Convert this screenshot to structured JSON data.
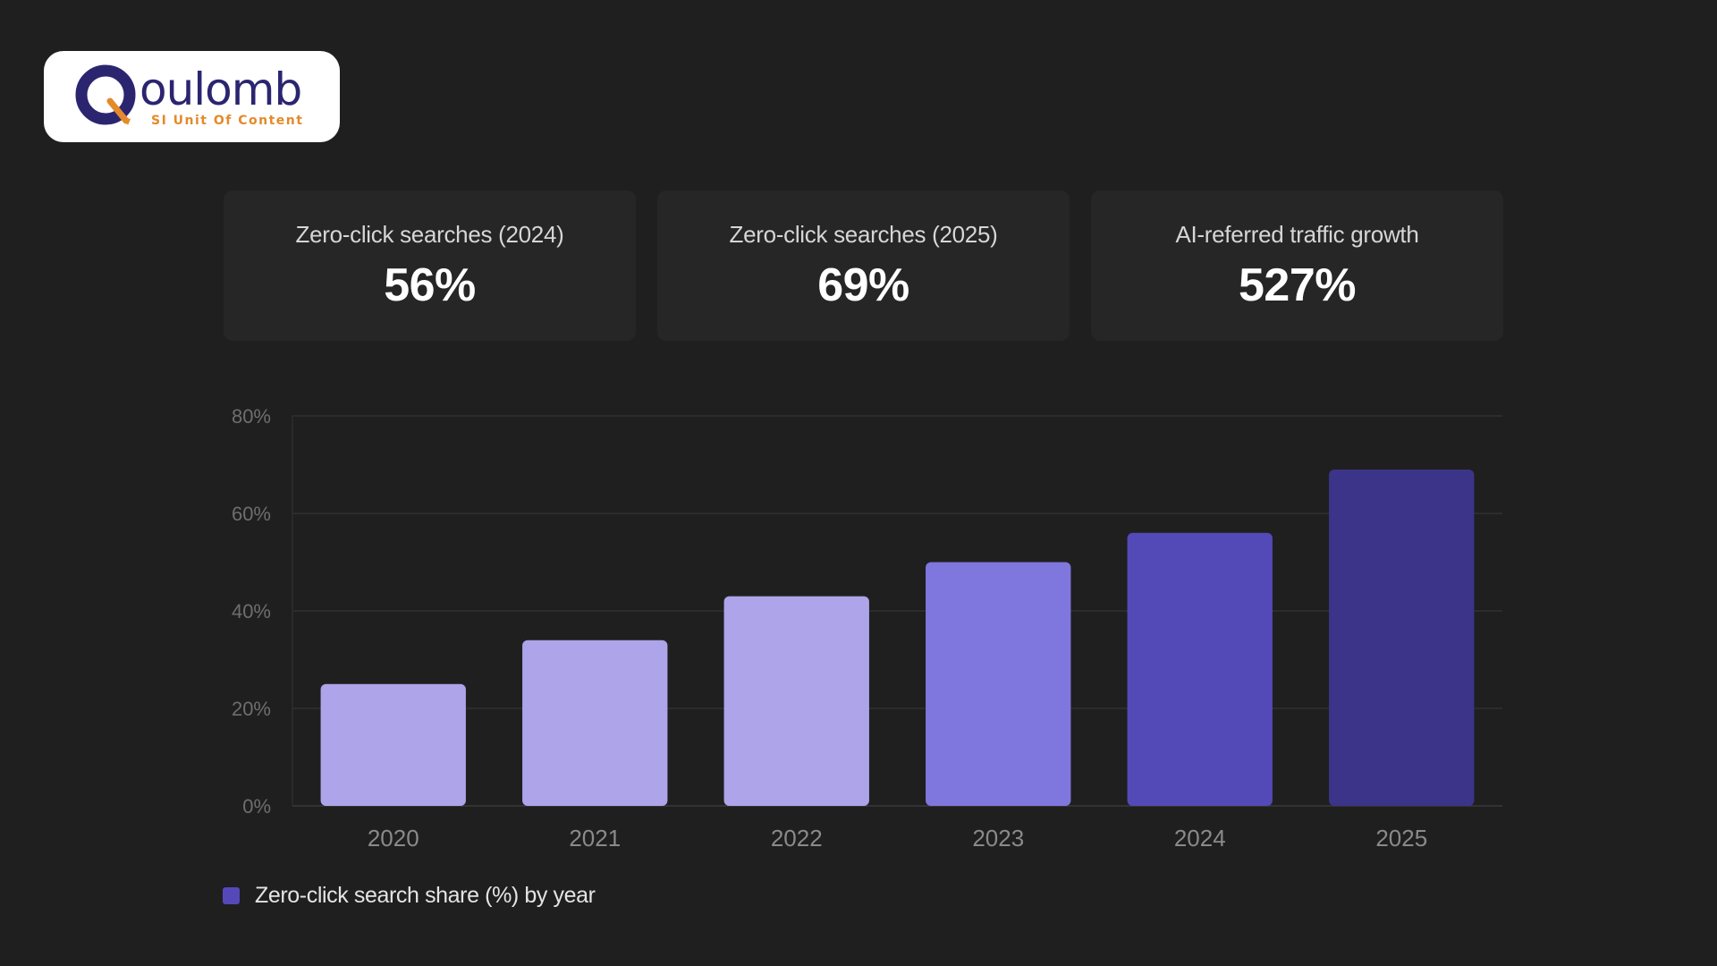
{
  "brand": {
    "name": "oulomb",
    "tagline": "SI Unit Of Content",
    "colors": {
      "navy": "#2b2570",
      "orange": "#e48a2a"
    }
  },
  "stats": [
    {
      "label": "Zero-click searches (2024)",
      "value": "56%"
    },
    {
      "label": "Zero-click searches (2025)",
      "value": "69%"
    },
    {
      "label": "AI-referred traffic growth",
      "value": "527%"
    }
  ],
  "chart_data": {
    "type": "bar",
    "title": "",
    "xlabel": "",
    "ylabel": "",
    "categories": [
      "2020",
      "2021",
      "2022",
      "2023",
      "2024",
      "2025"
    ],
    "series": [
      {
        "name": "Zero-click search share (%) by year",
        "values": [
          25,
          34,
          43,
          50,
          56,
          69
        ]
      }
    ],
    "bar_colors": [
      "#ada4ea",
      "#ada4ea",
      "#ada4ea",
      "#7f77dd",
      "#534ab7",
      "#3c3489"
    ],
    "legend_color": "#5549b9",
    "ylim": [
      0,
      80
    ],
    "yticks": [
      0,
      20,
      40,
      60,
      80
    ],
    "ytick_labels": [
      "0%",
      "20%",
      "40%",
      "60%",
      "80%"
    ],
    "grid": true,
    "legend_position": "bottom-left"
  }
}
